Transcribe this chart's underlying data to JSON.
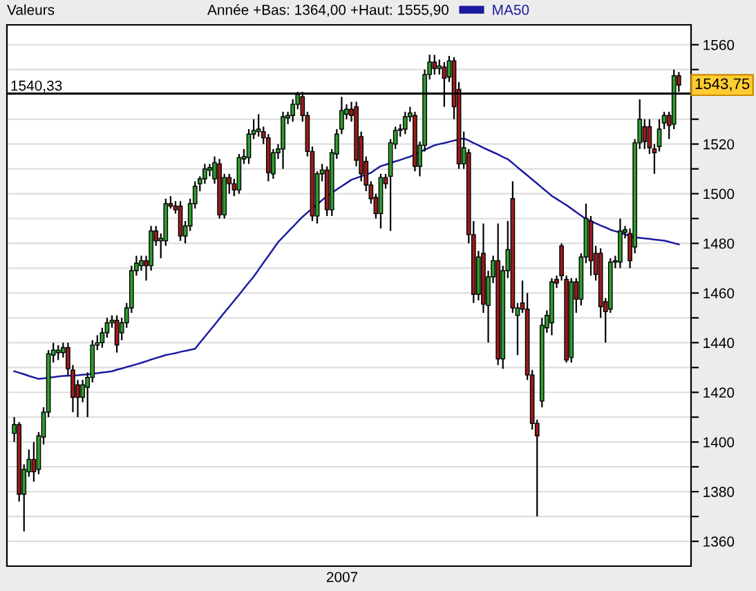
{
  "chart_data": {
    "type": "candlestick",
    "legend_title": "Valeurs",
    "subtitle": "Année +Bas: 1364,00 +Haut: 1555,90",
    "xlabel": "2007",
    "categories": [
      null,
      null,
      null,
      null,
      null,
      null,
      null,
      null,
      null,
      null,
      null,
      null,
      null,
      null,
      null,
      null,
      null,
      null,
      null,
      null,
      null,
      null,
      null,
      null,
      null,
      null,
      null,
      null,
      null,
      null,
      null,
      null,
      null,
      null,
      null,
      null,
      null,
      null,
      null,
      null,
      null,
      null,
      null,
      null,
      null,
      null,
      null,
      null,
      null,
      null,
      null,
      null,
      null,
      null,
      null,
      null,
      null,
      null,
      null,
      null,
      null,
      null,
      null,
      null,
      null,
      null,
      null,
      null,
      null,
      null,
      null,
      null,
      null,
      null,
      null,
      null,
      null,
      null,
      null,
      null,
      null,
      null,
      null,
      null,
      null,
      null,
      null,
      null,
      null,
      null,
      null,
      null,
      null,
      null,
      null,
      null,
      null,
      null,
      null,
      null,
      null,
      null,
      null,
      null,
      null,
      null,
      null,
      null,
      null,
      null,
      null,
      null,
      null,
      null,
      null,
      null,
      null,
      null,
      null,
      null,
      null,
      null,
      null,
      null,
      null,
      null,
      null,
      null,
      null,
      null,
      null,
      null,
      null,
      null,
      null,
      null,
      null
    ],
    "ohlc": [
      [
        1403.5,
        1410,
        1400,
        1407
      ],
      [
        1407,
        1408,
        1376,
        1379
      ],
      [
        1379,
        1391,
        1364,
        1389
      ],
      [
        1388,
        1397,
        1386,
        1393
      ],
      [
        1393,
        1400,
        1384,
        1388
      ],
      [
        1389,
        1404,
        1387,
        1402.5
      ],
      [
        1402,
        1414,
        1399,
        1412
      ],
      [
        1412,
        1437,
        1410,
        1435.5
      ],
      [
        1435,
        1440,
        1432,
        1437
      ],
      [
        1436,
        1439,
        1433,
        1437
      ],
      [
        1436,
        1440,
        1434,
        1438
      ],
      [
        1438,
        1440,
        1427,
        1429.5
      ],
      [
        1429,
        1431,
        1412,
        1418
      ],
      [
        1423,
        1425,
        1410,
        1418
      ],
      [
        1418,
        1425,
        1416,
        1423
      ],
      [
        1422,
        1428,
        1410,
        1426
      ],
      [
        1426,
        1441,
        1424,
        1439
      ],
      [
        1439,
        1443,
        1437,
        1440
      ],
      [
        1440,
        1446,
        1438,
        1444
      ],
      [
        1444,
        1450,
        1442,
        1448
      ],
      [
        1448,
        1451,
        1446,
        1449
      ],
      [
        1449,
        1451,
        1436,
        1439
      ],
      [
        1444,
        1450,
        1441,
        1448
      ],
      [
        1448,
        1456,
        1446,
        1454
      ],
      [
        1454,
        1471,
        1452,
        1469
      ],
      [
        1469,
        1475,
        1467,
        1472
      ],
      [
        1471,
        1475,
        1469,
        1473
      ],
      [
        1473,
        1475,
        1465,
        1471
      ],
      [
        1471,
        1487,
        1469,
        1485
      ],
      [
        1485,
        1487,
        1479,
        1481
      ],
      [
        1481,
        1484,
        1474,
        1482
      ],
      [
        1481,
        1498,
        1479,
        1496
      ],
      [
        1496,
        1499,
        1494,
        1495
      ],
      [
        1495,
        1497,
        1492,
        1493.5
      ],
      [
        1495,
        1497,
        1481,
        1483
      ],
      [
        1483,
        1489,
        1480,
        1487
      ],
      [
        1487,
        1498,
        1485,
        1496
      ],
      [
        1496,
        1505,
        1494,
        1503
      ],
      [
        1504,
        1507,
        1501,
        1506
      ],
      [
        1506,
        1512,
        1504,
        1510
      ],
      [
        1509.5,
        1512,
        1507,
        1510.5
      ],
      [
        1506,
        1515,
        1504,
        1512.5
      ],
      [
        1512,
        1514,
        1490,
        1491.5
      ],
      [
        1491.5,
        1508,
        1490,
        1506.5
      ],
      [
        1506.5,
        1508,
        1500,
        1504
      ],
      [
        1504,
        1506,
        1499,
        1501.5
      ],
      [
        1501.5,
        1516,
        1500,
        1514.5
      ],
      [
        1514,
        1518,
        1512,
        1515
      ],
      [
        1514.5,
        1526,
        1512,
        1524
      ],
      [
        1524,
        1530,
        1522,
        1525.5
      ],
      [
        1525,
        1532,
        1523,
        1526
      ],
      [
        1525,
        1527,
        1520,
        1522.5
      ],
      [
        1522.5,
        1524,
        1505,
        1508.5
      ],
      [
        1508,
        1518,
        1506,
        1516.5
      ],
      [
        1516.5,
        1520,
        1514,
        1518
      ],
      [
        1518,
        1533,
        1510,
        1531
      ],
      [
        1530.5,
        1533,
        1528,
        1531.5
      ],
      [
        1531.5,
        1538,
        1529,
        1536
      ],
      [
        1536,
        1541,
        1534,
        1540
      ],
      [
        1539,
        1541,
        1529,
        1531.5
      ],
      [
        1531.5,
        1533,
        1515,
        1517
      ],
      [
        1517,
        1519,
        1489,
        1491
      ],
      [
        1491,
        1509,
        1488,
        1508
      ],
      [
        1508,
        1512,
        1505,
        1509.5
      ],
      [
        1509.5,
        1511,
        1491,
        1493.5
      ],
      [
        1493.5,
        1518,
        1491,
        1516.5
      ],
      [
        1516,
        1526,
        1514,
        1524
      ],
      [
        1526,
        1539,
        1524,
        1533.5
      ],
      [
        1532,
        1536,
        1530,
        1534
      ],
      [
        1534,
        1537,
        1529,
        1531.5
      ],
      [
        1535,
        1537,
        1511,
        1513.5
      ],
      [
        1523,
        1525,
        1505,
        1508
      ],
      [
        1513,
        1515,
        1501,
        1503.5
      ],
      [
        1503.5,
        1505,
        1496,
        1498
      ],
      [
        1498.5,
        1500,
        1490,
        1492
      ],
      [
        1492,
        1508,
        1486,
        1506.5
      ],
      [
        1506.5,
        1508,
        1502,
        1504
      ],
      [
        1507,
        1522,
        1485,
        1520.5
      ],
      [
        1520,
        1527,
        1518,
        1525.5
      ],
      [
        1525.5,
        1528,
        1523,
        1526
      ],
      [
        1526,
        1533,
        1524,
        1531
      ],
      [
        1531,
        1535,
        1529,
        1532.5
      ],
      [
        1531.5,
        1533,
        1509,
        1511
      ],
      [
        1511,
        1521,
        1507,
        1519.5
      ],
      [
        1519.5,
        1550,
        1517,
        1548
      ],
      [
        1548,
        1556,
        1546,
        1553
      ],
      [
        1553,
        1555.9,
        1548,
        1550.5
      ],
      [
        1550.5,
        1554,
        1548,
        1551.5
      ],
      [
        1551,
        1553,
        1535,
        1546.5
      ],
      [
        1547,
        1555.5,
        1545,
        1553.5
      ],
      [
        1553.5,
        1555,
        1530,
        1535
      ],
      [
        1542,
        1545,
        1510,
        1512
      ],
      [
        1512,
        1525,
        1510,
        1518.5
      ],
      [
        1516.5,
        1518,
        1480,
        1483.5
      ],
      [
        1483.5,
        1489,
        1456,
        1459.5
      ],
      [
        1459.5,
        1477,
        1457,
        1474.5
      ],
      [
        1476,
        1488,
        1452,
        1455.5
      ],
      [
        1455,
        1469,
        1440,
        1466.5
      ],
      [
        1466.5,
        1475,
        1464,
        1473
      ],
      [
        1473,
        1488,
        1431,
        1433.5
      ],
      [
        1433.5,
        1471,
        1429.5,
        1469
      ],
      [
        1469,
        1489,
        1466,
        1477.5
      ],
      [
        1498,
        1505,
        1452,
        1454
      ],
      [
        1451,
        1456,
        1435,
        1454
      ],
      [
        1456,
        1465,
        1452,
        1453.5
      ],
      [
        1453.5,
        1460,
        1425,
        1427
      ],
      [
        1427,
        1429,
        1405,
        1407.5
      ],
      [
        1407.5,
        1409,
        1370,
        1402.5
      ],
      [
        1416.5,
        1450,
        1414,
        1447
      ],
      [
        1446,
        1453,
        1444,
        1451
      ],
      [
        1448,
        1466,
        1443,
        1464.5
      ],
      [
        1465.5,
        1467,
        1462,
        1464
      ],
      [
        1479,
        1480,
        1465,
        1467
      ],
      [
        1465.5,
        1467,
        1432,
        1433
      ],
      [
        1434,
        1466,
        1432,
        1464.5
      ],
      [
        1464.5,
        1466,
        1452,
        1457.5
      ],
      [
        1457.5,
        1476,
        1455,
        1474.5
      ],
      [
        1474.5,
        1496,
        1472,
        1490
      ],
      [
        1489,
        1491,
        1467,
        1473
      ],
      [
        1476,
        1479,
        1465,
        1467.5
      ],
      [
        1476,
        1478,
        1450,
        1454.5
      ],
      [
        1456.5,
        1458,
        1440,
        1452.5
      ],
      [
        1453.5,
        1474,
        1452,
        1472.5
      ],
      [
        1472.5,
        1475,
        1470,
        1473
      ],
      [
        1472.5,
        1490,
        1470,
        1485
      ],
      [
        1484.5,
        1487,
        1482,
        1485.5
      ],
      [
        1484,
        1486,
        1470,
        1473
      ],
      [
        1478.5,
        1522,
        1476,
        1520.5
      ],
      [
        1520.5,
        1538,
        1518,
        1530
      ],
      [
        1527,
        1530,
        1518,
        1521
      ],
      [
        1527,
        1530,
        1516,
        1518.5
      ],
      [
        1518,
        1520,
        1508,
        1516.5
      ],
      [
        1519,
        1530,
        1517,
        1526
      ],
      [
        1528.5,
        1533,
        1526,
        1531.5
      ],
      [
        1531.5,
        1533,
        1522,
        1527.5
      ],
      [
        1528,
        1550,
        1526,
        1547.5
      ],
      [
        1547.5,
        1549,
        1541,
        1543.75
      ]
    ],
    "series": [
      {
        "name": "MA50",
        "type": "line",
        "color": "#1a1aa0",
        "values": [
          1428.5,
          1427.9,
          1427.3,
          1426.6,
          1426.0,
          1425.4,
          1425.6,
          1425.9,
          1426.1,
          1426.4,
          1426.6,
          1426.7,
          1426.8,
          1426.9,
          1427.1,
          1427.2,
          1427.5,
          1427.7,
          1428.0,
          1428.2,
          1428.5,
          1429.1,
          1429.6,
          1430.2,
          1430.7,
          1431.3,
          1431.9,
          1432.5,
          1433.2,
          1433.8,
          1434.4,
          1435.0,
          1435.4,
          1435.8,
          1436.3,
          1436.7,
          1437.1,
          1437.5,
          1440.0,
          1442.4,
          1444.8,
          1447.2,
          1449.7,
          1452.1,
          1454.5,
          1456.9,
          1459.3,
          1461.8,
          1464.2,
          1466.6,
          1469.4,
          1472.2,
          1474.9,
          1477.7,
          1480.5,
          1482.5,
          1484.6,
          1486.6,
          1488.7,
          1490.7,
          1492.4,
          1494.1,
          1495.7,
          1497.4,
          1499.1,
          1500.4,
          1501.7,
          1503.0,
          1504.3,
          1505.6,
          1506.3,
          1507.0,
          1507.7,
          1508.4,
          1509.8,
          1511.1,
          1511.7,
          1512.4,
          1513.0,
          1513.6,
          1514.3,
          1514.9,
          1515.8,
          1516.7,
          1517.7,
          1518.6,
          1519.5,
          1520.0,
          1520.4,
          1520.9,
          1521.4,
          1521.8,
          1522.3,
          1521.4,
          1520.4,
          1519.5,
          1518.5,
          1517.6,
          1516.7,
          1515.8,
          1514.8,
          1513.9,
          1512.3,
          1510.6,
          1509.0,
          1507.4,
          1505.7,
          1504.1,
          1502.4,
          1500.8,
          1499.1,
          1497.9,
          1496.6,
          1495.4,
          1494.0,
          1492.6,
          1491.2,
          1489.8,
          1488.9,
          1488.1,
          1487.2,
          1486.4,
          1485.5,
          1484.9,
          1484.3,
          1483.6,
          1483.0,
          1482.4,
          1482.2,
          1482.0,
          1481.8,
          1481.5,
          1481.3,
          1481.1,
          1480.6,
          1480.1,
          1479.6
        ]
      }
    ],
    "ylim": [
      1350,
      1568
    ],
    "yticks": [
      1360,
      {
        "value": 1370,
        "label": null
      },
      1380,
      {
        "value": 1390,
        "label": null
      },
      1400,
      {
        "value": 1410,
        "label": null
      },
      1420,
      {
        "value": 1430,
        "label": null
      },
      1440,
      {
        "value": 1450,
        "label": null
      },
      1460,
      {
        "value": 1470,
        "label": null
      },
      1480,
      {
        "value": 1490,
        "label": null
      },
      1500,
      {
        "value": 1510,
        "label": null
      },
      1520,
      {
        "value": 1530,
        "label": null
      },
      {
        "value": 1540,
        "label": null
      },
      {
        "value": 1550,
        "label": null
      },
      1560
    ],
    "ref_lines": [
      {
        "axis": "y",
        "value": 1540.33,
        "label": "1540,33",
        "color": "#000000"
      }
    ],
    "annotations": [
      "1543,75"
    ],
    "grid": "y",
    "legend": "top"
  }
}
